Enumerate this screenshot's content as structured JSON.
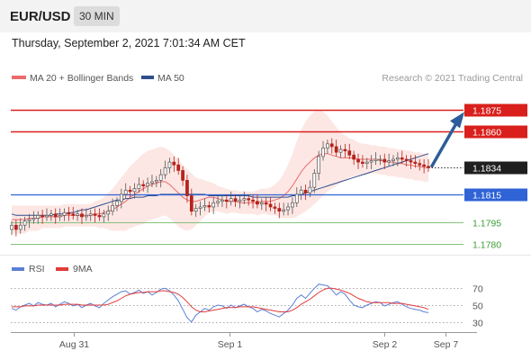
{
  "header": {
    "pair": "EUR/USD",
    "timeframe": "30 MIN",
    "datetime": "Thursday, September 2, 2021 7:01:34 AM CET"
  },
  "legend": {
    "ma20": "MA 20 + Bollinger Bands",
    "ma50": "MA 50",
    "credit": "Research © 2021 Trading Central",
    "rsi": "RSI",
    "ma9": "9MA"
  },
  "colors": {
    "resistance": "#d9201c",
    "current": "#1f1f1f",
    "support_major": "#2f63d6",
    "support_minor": "#3f9c35",
    "ma20": "#ea6b6b",
    "bollinger_fill": "#fde4e1",
    "ma50": "#2e4f8c",
    "candle_up": "#555555",
    "candle_down": "#b5221b",
    "arrow": "#2d5d9a",
    "rsi_line": "#5b7fd6",
    "rsi_ma": "#e23b3b"
  },
  "chart_data": [
    {
      "type": "candlestick",
      "title": "EUR/USD 30 MIN",
      "ylim": [
        1.1772,
        1.189
      ],
      "x_ticks": [
        "Aug 31",
        "Sep 1",
        "Sep 2",
        "Sep 7"
      ],
      "levels": [
        {
          "value": 1.1875,
          "label": "1.1875",
          "kind": "resistance"
        },
        {
          "value": 1.186,
          "label": "1.1860",
          "kind": "resistance"
        },
        {
          "value": 1.1834,
          "label": "1.1834",
          "kind": "current"
        },
        {
          "value": 1.1815,
          "label": "1.1815",
          "kind": "support_major"
        },
        {
          "value": 1.1795,
          "label": "1.1795",
          "kind": "support_minor"
        },
        {
          "value": 1.178,
          "label": "1.1780",
          "kind": "support_minor"
        }
      ],
      "close": [
        1.1793,
        1.179,
        1.1793,
        1.1796,
        1.1797,
        1.1798,
        1.18,
        1.1799,
        1.18,
        1.1801,
        1.1799,
        1.18,
        1.1802,
        1.1801,
        1.18,
        1.1801,
        1.1799,
        1.18,
        1.1801,
        1.18,
        1.1799,
        1.1801,
        1.1803,
        1.1807,
        1.181,
        1.1815,
        1.1818,
        1.1817,
        1.1819,
        1.1822,
        1.1821,
        1.1823,
        1.1824,
        1.1825,
        1.1829,
        1.1834,
        1.1838,
        1.1836,
        1.1832,
        1.1825,
        1.1814,
        1.1803,
        1.1805,
        1.1806,
        1.1807,
        1.1806,
        1.1809,
        1.181,
        1.1811,
        1.181,
        1.1812,
        1.181,
        1.1811,
        1.1812,
        1.1811,
        1.181,
        1.1808,
        1.1809,
        1.1808,
        1.1806,
        1.1805,
        1.1803,
        1.1804,
        1.1806,
        1.1809,
        1.1815,
        1.1818,
        1.1816,
        1.182,
        1.183,
        1.1842,
        1.1848,
        1.1851,
        1.1849,
        1.1845,
        1.1847,
        1.1846,
        1.1843,
        1.184,
        1.1838,
        1.1837,
        1.1838,
        1.1839,
        1.184,
        1.184,
        1.1838,
        1.1839,
        1.184,
        1.1841,
        1.184,
        1.1839,
        1.1838,
        1.1837,
        1.1836,
        1.1835,
        1.1834
      ],
      "ma20": [
        1.1797,
        1.1797,
        1.1797,
        1.1797,
        1.1798,
        1.1798,
        1.1798,
        1.1799,
        1.1799,
        1.1799,
        1.1799,
        1.1799,
        1.18,
        1.18,
        1.18,
        1.18,
        1.18,
        1.18,
        1.18,
        1.1801,
        1.1801,
        1.1802,
        1.1803,
        1.1804,
        1.1806,
        1.1808,
        1.181,
        1.1813,
        1.1815,
        1.1817,
        1.1819,
        1.1821,
        1.1822,
        1.1823,
        1.1824,
        1.1824,
        1.1822,
        1.1819,
        1.1816,
        1.1813,
        1.1811,
        1.181,
        1.181,
        1.1811,
        1.1812,
        1.1813,
        1.1813,
        1.1812,
        1.1811,
        1.181,
        1.181,
        1.181,
        1.1809,
        1.1809,
        1.1809,
        1.1809,
        1.1809,
        1.181,
        1.181,
        1.181,
        1.1811,
        1.1812,
        1.1814,
        1.1817,
        1.1821,
        1.1826,
        1.1831,
        1.1835,
        1.1838,
        1.1841,
        1.1843,
        1.1844,
        1.1844,
        1.1843,
        1.1842,
        1.1841,
        1.1841,
        1.1841,
        1.1841,
        1.184,
        1.184,
        1.184,
        1.184,
        1.184,
        1.1839,
        1.1839,
        1.1838,
        1.1838,
        1.1837,
        1.1837,
        1.1836,
        1.1836,
        1.1835,
        1.1835,
        1.1834,
        1.1834
      ],
      "ma50": [
        1.1801,
        1.18,
        1.18,
        1.18,
        1.18,
        1.18,
        1.18,
        1.18,
        1.18,
        1.18,
        1.1801,
        1.1801,
        1.1801,
        1.1802,
        1.1802,
        1.1803,
        1.1804,
        1.1804,
        1.1805,
        1.1806,
        1.1807,
        1.1808,
        1.1809,
        1.181,
        1.1811,
        1.1811,
        1.1812,
        1.1812,
        1.1813,
        1.1813,
        1.1813,
        1.1814,
        1.1814,
        1.1814,
        1.1815,
        1.1815,
        1.1815,
        1.1815,
        1.1815,
        1.1815,
        1.1815,
        1.1815,
        1.1815,
        1.1815,
        1.1815,
        1.1814,
        1.1814,
        1.1814,
        1.1814,
        1.1814,
        1.1814,
        1.1814,
        1.1814,
        1.1814,
        1.1814,
        1.1813,
        1.1813,
        1.1813,
        1.1813,
        1.1813,
        1.1813,
        1.1813,
        1.1813,
        1.1813,
        1.1814,
        1.1814,
        1.1815,
        1.1816,
        1.1817,
        1.1818,
        1.1819,
        1.182,
        1.1821,
        1.1822,
        1.1823,
        1.1824,
        1.1825,
        1.1826,
        1.1827,
        1.1828,
        1.1829,
        1.183,
        1.1831,
        1.1832,
        1.1833,
        1.1834,
        1.1835,
        1.1836,
        1.1837,
        1.1838,
        1.1839,
        1.184,
        1.1841,
        1.1842,
        1.1843,
        1.1844
      ],
      "bb_width": [
        0.001,
        0.001,
        0.001,
        0.001,
        0.0009,
        0.0009,
        0.0009,
        0.0008,
        0.0008,
        0.0008,
        0.0008,
        0.0008,
        0.0008,
        0.0008,
        0.0008,
        0.0008,
        0.0008,
        0.0008,
        0.0008,
        0.0009,
        0.001,
        0.0011,
        0.0013,
        0.0015,
        0.0017,
        0.0019,
        0.0021,
        0.0022,
        0.0023,
        0.0024,
        0.0025,
        0.0025,
        0.0025,
        0.0025,
        0.0025,
        0.0024,
        0.0024,
        0.0024,
        0.0024,
        0.0023,
        0.0022,
        0.002,
        0.0017,
        0.0015,
        0.0013,
        0.0011,
        0.001,
        0.0009,
        0.0009,
        0.0009,
        0.0008,
        0.0008,
        0.0008,
        0.0008,
        0.0008,
        0.0008,
        0.0009,
        0.0009,
        0.0009,
        0.001,
        0.0011,
        0.0013,
        0.0016,
        0.0019,
        0.0023,
        0.0027,
        0.003,
        0.0032,
        0.0033,
        0.0033,
        0.0032,
        0.003,
        0.0027,
        0.0024,
        0.0021,
        0.0018,
        0.0016,
        0.0014,
        0.0013,
        0.0012,
        0.0011,
        0.0011,
        0.001,
        0.001,
        0.001,
        0.001,
        0.001,
        0.001,
        0.001,
        0.001,
        0.001,
        0.001,
        0.001,
        0.001,
        0.001,
        0.001
      ],
      "forecast_arrow": {
        "from": 1.1834,
        "to": 1.1875
      }
    },
    {
      "type": "line",
      "title": "RSI",
      "ylim": [
        20,
        80
      ],
      "y_ticks": [
        70,
        50,
        30
      ],
      "series": [
        {
          "name": "RSI",
          "values": [
            46,
            44,
            48,
            50,
            52,
            49,
            53,
            51,
            50,
            52,
            48,
            51,
            54,
            52,
            49,
            51,
            47,
            50,
            52,
            49,
            47,
            52,
            56,
            60,
            63,
            66,
            67,
            63,
            65,
            68,
            64,
            66,
            62,
            65,
            69,
            70,
            67,
            62,
            55,
            45,
            35,
            30,
            38,
            42,
            46,
            44,
            48,
            50,
            49,
            46,
            50,
            47,
            49,
            51,
            48,
            46,
            42,
            45,
            43,
            40,
            38,
            36,
            40,
            44,
            50,
            58,
            62,
            58,
            64,
            70,
            75,
            74,
            73,
            68,
            62,
            66,
            63,
            56,
            50,
            48,
            47,
            50,
            52,
            54,
            53,
            49,
            51,
            53,
            54,
            51,
            48,
            46,
            45,
            44,
            42,
            41
          ]
        },
        {
          "name": "9MA",
          "values": [
            48,
            48,
            48,
            49,
            49,
            49,
            50,
            50,
            50,
            50,
            50,
            50,
            51,
            51,
            51,
            51,
            50,
            50,
            50,
            50,
            50,
            50,
            51,
            53,
            55,
            58,
            61,
            63,
            64,
            65,
            65,
            66,
            66,
            66,
            67,
            67,
            66,
            65,
            63,
            59,
            54,
            48,
            44,
            42,
            42,
            43,
            44,
            45,
            46,
            47,
            47,
            47,
            48,
            48,
            48,
            48,
            47,
            46,
            45,
            44,
            43,
            42,
            42,
            42,
            44,
            47,
            51,
            54,
            57,
            61,
            65,
            68,
            70,
            70,
            69,
            68,
            66,
            64,
            61,
            58,
            56,
            54,
            53,
            53,
            53,
            53,
            53,
            52,
            52,
            52,
            51,
            50,
            49,
            48,
            47,
            45
          ]
        }
      ]
    }
  ]
}
